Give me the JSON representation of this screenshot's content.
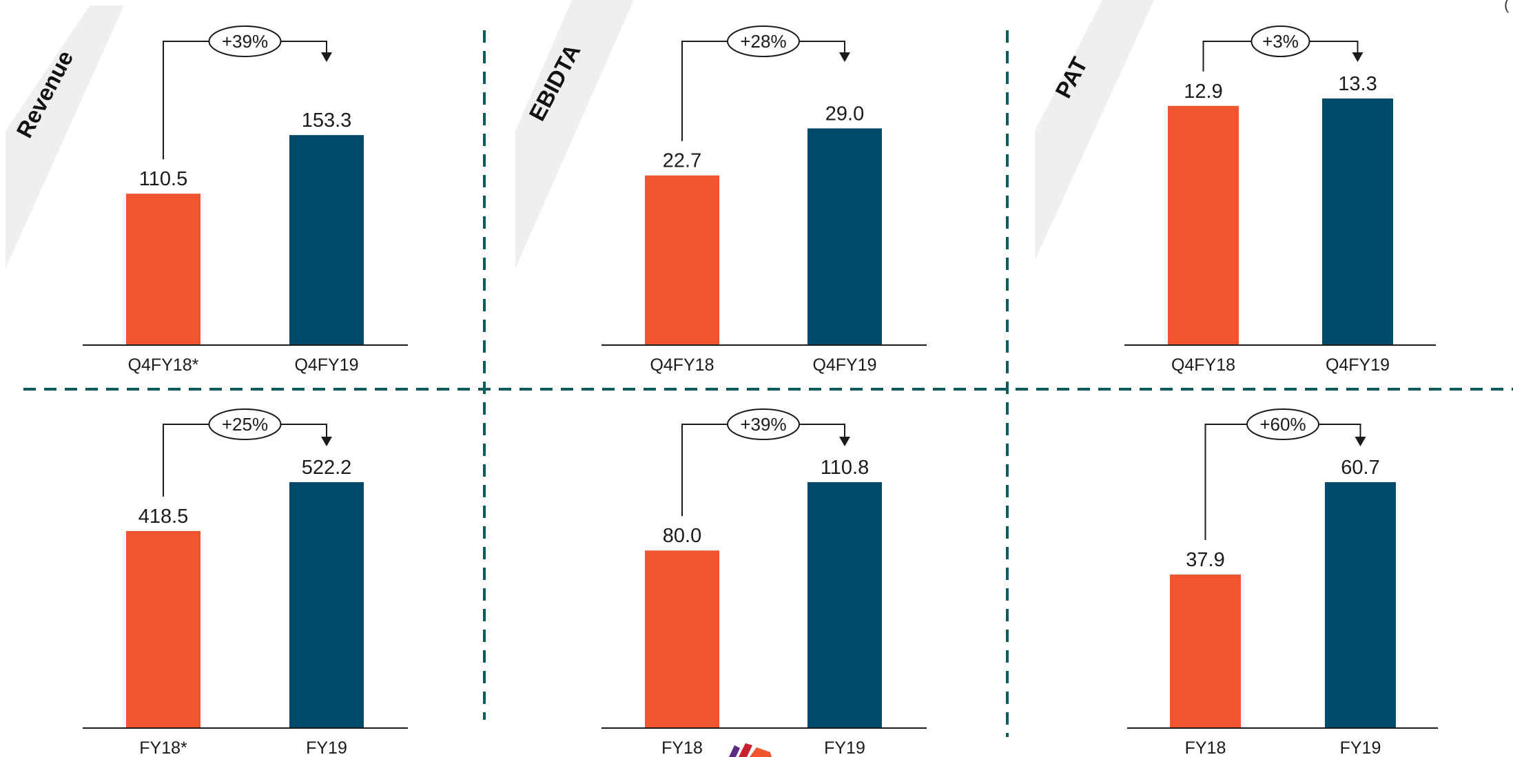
{
  "colors": {
    "previous": "#F0552D",
    "current": "#004B6B",
    "divider": "#0F5A5C",
    "banner": "#EFEFEF",
    "axis": "#1a1a1a"
  },
  "corner_text": "(",
  "metrics": [
    "Revenue",
    "EBIDTA",
    "PAT"
  ],
  "chart_data": [
    {
      "type": "bar",
      "metric": "Revenue",
      "categories": [
        "Q4FY18*",
        "Q4FY19"
      ],
      "values": [
        110.5,
        153.3
      ],
      "value_labels": [
        "110.5",
        "153.3"
      ],
      "change": "+39%",
      "ylim": [
        0,
        180
      ]
    },
    {
      "type": "bar",
      "metric": "EBIDTA",
      "categories": [
        "Q4FY18",
        "Q4FY19"
      ],
      "values": [
        22.7,
        29.0
      ],
      "value_labels": [
        "22.7",
        "29.0"
      ],
      "change": "+28%",
      "ylim": [
        0,
        33
      ]
    },
    {
      "type": "bar",
      "metric": "PAT",
      "categories": [
        "Q4FY18",
        "Q4FY19"
      ],
      "values": [
        12.9,
        13.3
      ],
      "value_labels": [
        "12.9",
        "13.3"
      ],
      "change": "+3%",
      "ylim": [
        0,
        13.3
      ]
    },
    {
      "type": "bar",
      "metric": "Revenue",
      "categories": [
        "FY18*",
        "FY19"
      ],
      "values": [
        418.5,
        522.2
      ],
      "value_labels": [
        "418.5",
        "522.2"
      ],
      "change": "+25%",
      "ylim": [
        0,
        522.2
      ]
    },
    {
      "type": "bar",
      "metric": "EBIDTA",
      "categories": [
        "FY18",
        "FY19"
      ],
      "values": [
        80.0,
        110.8
      ],
      "value_labels": [
        "80.0",
        "110.8"
      ],
      "change": "+39%",
      "ylim": [
        0,
        110.8
      ]
    },
    {
      "type": "bar",
      "metric": "PAT",
      "categories": [
        "FY18",
        "FY19"
      ],
      "values": [
        37.9,
        60.7
      ],
      "value_labels": [
        "37.9",
        "60.7"
      ],
      "change": "+60%",
      "ylim": [
        0,
        60.7
      ]
    }
  ]
}
